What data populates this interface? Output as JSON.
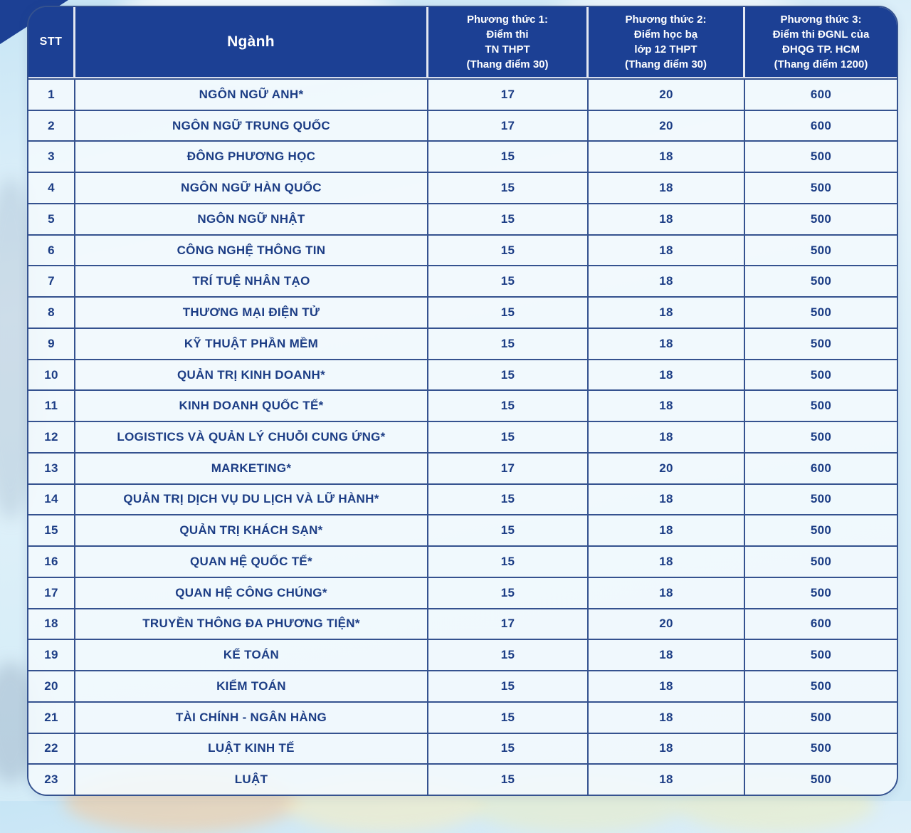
{
  "colors": {
    "header_bg": "#1c4094",
    "body_text": "#1c3d85",
    "border": "#35528f",
    "cell_bg": "#f3fafd",
    "header_text": "#ffffff"
  },
  "table": {
    "header": {
      "stt": "STT",
      "nganh": "Ngành",
      "pt1": "Phương thức 1:\nĐiểm thi\nTN THPT\n(Thang điểm 30)",
      "pt2": "Phương thức 2:\nĐiểm học bạ\nlớp 12 THPT\n(Thang điểm 30)",
      "pt3": "Phương thức 3:\nĐiểm thi ĐGNL của\nĐHQG TP. HCM\n(Thang điểm 1200)"
    },
    "rows": [
      {
        "stt": "1",
        "nganh": "NGÔN NGỮ ANH*",
        "pt1": "17",
        "pt2": "20",
        "pt3": "600"
      },
      {
        "stt": "2",
        "nganh": "NGÔN NGỮ TRUNG QUỐC",
        "pt1": "17",
        "pt2": "20",
        "pt3": "600"
      },
      {
        "stt": "3",
        "nganh": "ĐÔNG PHƯƠNG HỌC",
        "pt1": "15",
        "pt2": "18",
        "pt3": "500"
      },
      {
        "stt": "4",
        "nganh": "NGÔN NGỮ HÀN QUỐC",
        "pt1": "15",
        "pt2": "18",
        "pt3": "500"
      },
      {
        "stt": "5",
        "nganh": "NGÔN NGỮ NHẬT",
        "pt1": "15",
        "pt2": "18",
        "pt3": "500"
      },
      {
        "stt": "6",
        "nganh": "CÔNG NGHỆ THÔNG TIN",
        "pt1": "15",
        "pt2": "18",
        "pt3": "500"
      },
      {
        "stt": "7",
        "nganh": "TRÍ TUỆ NHÂN TẠO",
        "pt1": "15",
        "pt2": "18",
        "pt3": "500"
      },
      {
        "stt": "8",
        "nganh": "THƯƠNG MẠI ĐIỆN TỬ",
        "pt1": "15",
        "pt2": "18",
        "pt3": "500"
      },
      {
        "stt": "9",
        "nganh": "KỸ THUẬT PHẦN MỀM",
        "pt1": "15",
        "pt2": "18",
        "pt3": "500"
      },
      {
        "stt": "10",
        "nganh": "QUẢN TRỊ KINH DOANH*",
        "pt1": "15",
        "pt2": "18",
        "pt3": "500"
      },
      {
        "stt": "11",
        "nganh": "KINH DOANH QUỐC TẾ*",
        "pt1": "15",
        "pt2": "18",
        "pt3": "500"
      },
      {
        "stt": "12",
        "nganh": "LOGISTICS VÀ QUẢN LÝ CHUỖI CUNG ỨNG*",
        "pt1": "15",
        "pt2": "18",
        "pt3": "500"
      },
      {
        "stt": "13",
        "nganh": "MARKETING*",
        "pt1": "17",
        "pt2": "20",
        "pt3": "600"
      },
      {
        "stt": "14",
        "nganh": "QUẢN TRỊ DỊCH VỤ DU LỊCH VÀ LỮ HÀNH*",
        "pt1": "15",
        "pt2": "18",
        "pt3": "500"
      },
      {
        "stt": "15",
        "nganh": "QUẢN TRỊ KHÁCH SẠN*",
        "pt1": "15",
        "pt2": "18",
        "pt3": "500"
      },
      {
        "stt": "16",
        "nganh": "QUAN HỆ QUỐC TẾ*",
        "pt1": "15",
        "pt2": "18",
        "pt3": "500"
      },
      {
        "stt": "17",
        "nganh": "QUAN HỆ CÔNG CHÚNG*",
        "pt1": "15",
        "pt2": "18",
        "pt3": "500"
      },
      {
        "stt": "18",
        "nganh": "TRUYỀN THÔNG ĐA PHƯƠNG TIỆN*",
        "pt1": "17",
        "pt2": "20",
        "pt3": "600"
      },
      {
        "stt": "19",
        "nganh": "KẾ TOÁN",
        "pt1": "15",
        "pt2": "18",
        "pt3": "500"
      },
      {
        "stt": "20",
        "nganh": "KIỂM TOÁN",
        "pt1": "15",
        "pt2": "18",
        "pt3": "500"
      },
      {
        "stt": "21",
        "nganh": "TÀI CHÍNH - NGÂN HÀNG",
        "pt1": "15",
        "pt2": "18",
        "pt3": "500"
      },
      {
        "stt": "22",
        "nganh": "LUẬT KINH TẾ",
        "pt1": "15",
        "pt2": "18",
        "pt3": "500"
      },
      {
        "stt": "23",
        "nganh": "LUẬT",
        "pt1": "15",
        "pt2": "18",
        "pt3": "500"
      }
    ]
  }
}
